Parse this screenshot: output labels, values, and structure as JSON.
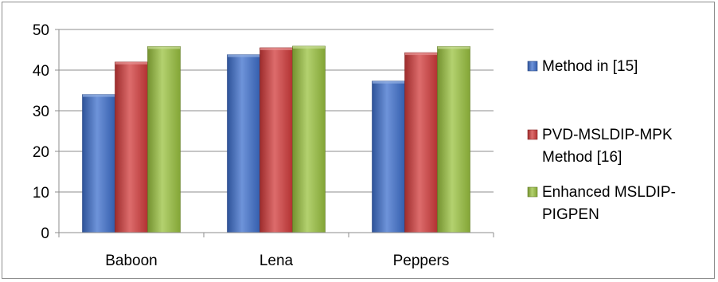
{
  "chart_data": {
    "type": "bar",
    "categories": [
      "Baboon",
      "Lena",
      "Peppers"
    ],
    "series": [
      {
        "name": "Method in [15]",
        "values": [
          34,
          43.8,
          37.3
        ],
        "color": "#3d6fcc"
      },
      {
        "name": "PVD-MSLDIP-MPK Method [16]",
        "values": [
          42,
          45.5,
          44.3
        ],
        "color": "#d13b3b"
      },
      {
        "name": "Enhanced MSLDIP-PIGPEN",
        "values": [
          45.8,
          45.9,
          45.8
        ],
        "color": "#9ac23f"
      }
    ],
    "legend_lines": [
      [
        "Method in [15]"
      ],
      [
        "PVD-MSLDIP-MPK",
        "Method [16]"
      ],
      [
        "Enhanced MSLDIP-",
        "PIGPEN"
      ]
    ],
    "ylim": [
      0,
      50
    ],
    "yticks": [
      0,
      10,
      20,
      30,
      40,
      50
    ],
    "grid": true,
    "legend_position": "right"
  }
}
